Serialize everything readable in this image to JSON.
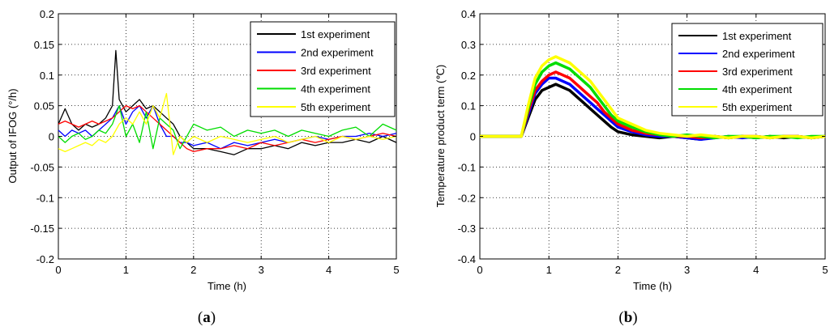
{
  "figure": {
    "captions": [
      {
        "open": "(",
        "letter": "a",
        "close": ")"
      },
      {
        "open": "(",
        "letter": "b",
        "close": ")"
      }
    ]
  },
  "chart_data": [
    {
      "type": "line",
      "title": "",
      "xlabel": "Time (h)",
      "ylabel": "Output of IFOG (°/h)",
      "xlim": [
        0,
        5
      ],
      "ylim": [
        -0.2,
        0.2
      ],
      "xticks": [
        0,
        1,
        2,
        3,
        4,
        5
      ],
      "xtick_labels": [
        "0",
        "1",
        "2",
        "3",
        "4",
        "5"
      ],
      "yticks": [
        -0.2,
        -0.15,
        -0.1,
        -0.05,
        0,
        0.05,
        0.1,
        0.15,
        0.2
      ],
      "ytick_labels": [
        "-0.2",
        "-0.15",
        "-0.1",
        "-0.05",
        "0",
        "0.05",
        "0.1",
        "0.15",
        "0.2"
      ],
      "grid": true,
      "legend_position": "top-right",
      "series": [
        {
          "name": "1st experiment",
          "color": "#000000",
          "x": [
            0,
            0.1,
            0.2,
            0.3,
            0.4,
            0.5,
            0.6,
            0.7,
            0.8,
            0.85,
            0.9,
            1.0,
            1.1,
            1.2,
            1.3,
            1.4,
            1.5,
            1.6,
            1.7,
            1.8,
            1.9,
            2.0,
            2.2,
            2.4,
            2.6,
            2.8,
            3.0,
            3.2,
            3.4,
            3.6,
            3.8,
            4.0,
            4.2,
            4.4,
            4.6,
            4.8,
            5.0
          ],
          "y": [
            0.02,
            0.045,
            0.02,
            0.01,
            0.02,
            0.015,
            0.02,
            0.03,
            0.05,
            0.14,
            0.06,
            0.04,
            0.05,
            0.06,
            0.045,
            0.05,
            0.04,
            0.03,
            0.02,
            0.0,
            -0.01,
            -0.02,
            -0.02,
            -0.025,
            -0.03,
            -0.02,
            -0.02,
            -0.015,
            -0.02,
            -0.01,
            -0.015,
            -0.01,
            -0.01,
            -0.005,
            -0.01,
            0.0,
            -0.01
          ]
        },
        {
          "name": "2nd experiment",
          "color": "#0000ff",
          "x": [
            0,
            0.1,
            0.2,
            0.3,
            0.4,
            0.5,
            0.6,
            0.7,
            0.8,
            0.9,
            1.0,
            1.1,
            1.2,
            1.3,
            1.4,
            1.5,
            1.6,
            1.7,
            1.8,
            1.9,
            2.0,
            2.2,
            2.4,
            2.6,
            2.8,
            3.0,
            3.2,
            3.4,
            3.6,
            3.8,
            4.0,
            4.2,
            4.4,
            4.6,
            4.8,
            5.0
          ],
          "y": [
            0.01,
            0.0,
            0.01,
            0.005,
            0.01,
            0.0,
            0.01,
            0.02,
            0.03,
            0.05,
            0.02,
            0.04,
            0.05,
            0.03,
            0.05,
            0.02,
            0.0,
            0.0,
            -0.01,
            -0.01,
            -0.015,
            -0.01,
            -0.02,
            -0.01,
            -0.015,
            -0.01,
            -0.005,
            -0.01,
            -0.005,
            0.0,
            -0.005,
            0.0,
            0.0,
            0.005,
            0.0,
            0.005
          ]
        },
        {
          "name": "3rd experiment",
          "color": "#ff0000",
          "x": [
            0,
            0.1,
            0.2,
            0.3,
            0.4,
            0.5,
            0.6,
            0.7,
            0.8,
            0.9,
            1.0,
            1.1,
            1.2,
            1.3,
            1.4,
            1.5,
            1.6,
            1.7,
            1.8,
            1.9,
            2.0,
            2.2,
            2.4,
            2.6,
            2.8,
            3.0,
            3.2,
            3.4,
            3.6,
            3.8,
            4.0,
            4.2,
            4.4,
            4.6,
            4.8,
            5.0
          ],
          "y": [
            0.02,
            0.025,
            0.02,
            0.015,
            0.02,
            0.025,
            0.02,
            0.025,
            0.03,
            0.04,
            0.05,
            0.045,
            0.05,
            0.04,
            0.03,
            0.02,
            0.01,
            0.0,
            -0.01,
            -0.02,
            -0.025,
            -0.02,
            -0.02,
            -0.015,
            -0.02,
            -0.01,
            -0.015,
            -0.01,
            -0.005,
            -0.01,
            -0.005,
            0.0,
            -0.005,
            0.0,
            0.005,
            0.0
          ]
        },
        {
          "name": "4th experiment",
          "color": "#00dd00",
          "x": [
            0,
            0.1,
            0.2,
            0.3,
            0.4,
            0.5,
            0.6,
            0.7,
            0.8,
            0.9,
            1.0,
            1.1,
            1.2,
            1.3,
            1.4,
            1.5,
            1.6,
            1.7,
            1.8,
            1.9,
            2.0,
            2.2,
            2.4,
            2.6,
            2.8,
            3.0,
            3.2,
            3.4,
            3.6,
            3.8,
            4.0,
            4.2,
            4.4,
            4.6,
            4.8,
            5.0
          ],
          "y": [
            0.0,
            -0.01,
            0.0,
            0.005,
            -0.005,
            0.0,
            0.01,
            0.005,
            0.02,
            0.05,
            0.0,
            0.02,
            -0.01,
            0.04,
            -0.02,
            0.03,
            0.02,
            0.01,
            -0.02,
            0.0,
            0.02,
            0.01,
            0.015,
            0.0,
            0.01,
            0.005,
            0.01,
            0.0,
            0.01,
            0.005,
            0.0,
            0.01,
            0.015,
            0.0,
            0.02,
            0.01
          ]
        },
        {
          "name": "5th experiment",
          "color": "#ffff00",
          "x": [
            0,
            0.1,
            0.2,
            0.3,
            0.4,
            0.5,
            0.6,
            0.7,
            0.8,
            0.9,
            1.0,
            1.1,
            1.2,
            1.3,
            1.4,
            1.5,
            1.6,
            1.7,
            1.8,
            1.9,
            2.0,
            2.2,
            2.4,
            2.6,
            2.8,
            3.0,
            3.2,
            3.4,
            3.6,
            3.8,
            4.0,
            4.2,
            4.4,
            4.6,
            4.8,
            5.0
          ],
          "y": [
            -0.02,
            -0.025,
            -0.02,
            -0.015,
            -0.01,
            -0.015,
            -0.005,
            -0.01,
            0.0,
            0.02,
            0.03,
            0.02,
            0.04,
            0.02,
            0.05,
            0.03,
            0.07,
            -0.03,
            0.0,
            -0.01,
            0.0,
            -0.01,
            0.0,
            -0.005,
            -0.01,
            -0.005,
            0.0,
            -0.01,
            -0.005,
            0.0,
            -0.01,
            0.0,
            -0.005,
            0.0,
            -0.005,
            0.0
          ]
        }
      ]
    },
    {
      "type": "line",
      "title": "",
      "xlabel": "Time (h)",
      "ylabel": "Temperature product term (℃)",
      "xlim": [
        0,
        5
      ],
      "ylim": [
        -0.4,
        0.4
      ],
      "xticks": [
        0,
        1,
        2,
        3,
        4,
        5
      ],
      "xtick_labels": [
        "0",
        "1",
        "2",
        "3",
        "4",
        "5"
      ],
      "yticks": [
        -0.4,
        -0.3,
        -0.2,
        -0.1,
        0,
        0.1,
        0.2,
        0.3,
        0.4
      ],
      "ytick_labels": [
        "-0.4",
        "-0.3",
        "-0.2",
        "-0.1",
        "0",
        "0.1",
        "0.2",
        "0.3",
        "0.4"
      ],
      "grid": true,
      "legend_position": "top-right",
      "series": [
        {
          "name": "1st experiment",
          "color": "#000000",
          "x": [
            0,
            0.3,
            0.6,
            0.7,
            0.8,
            0.9,
            1.0,
            1.1,
            1.2,
            1.3,
            1.4,
            1.5,
            1.6,
            1.7,
            1.8,
            1.9,
            2.0,
            2.2,
            2.4,
            2.6,
            2.8,
            3.0,
            3.2,
            3.4,
            3.6,
            3.8,
            4.0,
            4.2,
            4.4,
            4.6,
            4.8,
            5.0
          ],
          "y": [
            0.0,
            0.0,
            0.0,
            0.06,
            0.12,
            0.15,
            0.16,
            0.17,
            0.16,
            0.15,
            0.13,
            0.11,
            0.09,
            0.07,
            0.05,
            0.03,
            0.015,
            0.005,
            0.0,
            -0.005,
            0.0,
            -0.005,
            -0.01,
            0.0,
            -0.005,
            0.0,
            -0.005,
            0.0,
            -0.005,
            0.0,
            -0.005,
            0.0
          ]
        },
        {
          "name": "2nd experiment",
          "color": "#0000ff",
          "x": [
            0,
            0.3,
            0.6,
            0.7,
            0.8,
            0.9,
            1.0,
            1.1,
            1.2,
            1.3,
            1.4,
            1.5,
            1.6,
            1.7,
            1.8,
            1.9,
            2.0,
            2.2,
            2.4,
            2.6,
            2.8,
            3.0,
            3.2,
            3.4,
            3.6,
            3.8,
            4.0,
            4.2,
            4.4,
            4.6,
            4.8,
            5.0
          ],
          "y": [
            0.0,
            0.0,
            0.0,
            0.07,
            0.14,
            0.17,
            0.19,
            0.19,
            0.18,
            0.17,
            0.15,
            0.13,
            0.11,
            0.09,
            0.07,
            0.05,
            0.03,
            0.015,
            0.005,
            0.0,
            0.0,
            -0.005,
            -0.01,
            -0.005,
            0.0,
            -0.005,
            0.0,
            -0.005,
            0.0,
            0.0,
            -0.005,
            0.0
          ]
        },
        {
          "name": "3rd experiment",
          "color": "#ff0000",
          "x": [
            0,
            0.3,
            0.6,
            0.7,
            0.8,
            0.9,
            1.0,
            1.1,
            1.2,
            1.3,
            1.4,
            1.5,
            1.6,
            1.7,
            1.8,
            1.9,
            2.0,
            2.2,
            2.4,
            2.6,
            2.8,
            3.0,
            3.2,
            3.4,
            3.6,
            3.8,
            4.0,
            4.2,
            4.4,
            4.6,
            4.8,
            5.0
          ],
          "y": [
            0.0,
            0.0,
            0.0,
            0.08,
            0.15,
            0.18,
            0.2,
            0.21,
            0.2,
            0.19,
            0.17,
            0.15,
            0.13,
            0.11,
            0.08,
            0.06,
            0.04,
            0.02,
            0.01,
            0.005,
            0.0,
            0.0,
            -0.005,
            0.0,
            -0.005,
            0.0,
            0.0,
            -0.005,
            0.0,
            0.0,
            -0.005,
            0.0
          ]
        },
        {
          "name": "4th experiment",
          "color": "#00dd00",
          "x": [
            0,
            0.3,
            0.6,
            0.7,
            0.8,
            0.9,
            1.0,
            1.1,
            1.2,
            1.3,
            1.4,
            1.5,
            1.6,
            1.7,
            1.8,
            1.9,
            2.0,
            2.2,
            2.4,
            2.6,
            2.8,
            3.0,
            3.2,
            3.4,
            3.6,
            3.8,
            4.0,
            4.2,
            4.4,
            4.6,
            4.8,
            5.0
          ],
          "y": [
            0.0,
            0.0,
            0.0,
            0.09,
            0.17,
            0.21,
            0.23,
            0.24,
            0.23,
            0.22,
            0.2,
            0.18,
            0.16,
            0.13,
            0.1,
            0.07,
            0.05,
            0.03,
            0.015,
            0.005,
            0.0,
            0.005,
            0.0,
            -0.005,
            0.0,
            0.0,
            -0.005,
            0.0,
            0.0,
            -0.005,
            0.0,
            0.0
          ]
        },
        {
          "name": "5th experiment",
          "color": "#ffff00",
          "x": [
            0,
            0.3,
            0.6,
            0.7,
            0.8,
            0.9,
            1.0,
            1.1,
            1.2,
            1.3,
            1.4,
            1.5,
            1.6,
            1.7,
            1.8,
            1.9,
            2.0,
            2.2,
            2.4,
            2.6,
            2.8,
            3.0,
            3.2,
            3.4,
            3.6,
            3.8,
            4.0,
            4.2,
            4.4,
            4.6,
            4.8,
            5.0
          ],
          "y": [
            0.0,
            0.0,
            0.0,
            0.1,
            0.19,
            0.23,
            0.25,
            0.26,
            0.25,
            0.24,
            0.22,
            0.2,
            0.18,
            0.15,
            0.12,
            0.09,
            0.06,
            0.04,
            0.02,
            0.01,
            0.005,
            0.0,
            0.005,
            0.0,
            -0.005,
            0.0,
            0.0,
            -0.005,
            0.0,
            0.0,
            -0.005,
            0.0
          ]
        }
      ]
    }
  ]
}
